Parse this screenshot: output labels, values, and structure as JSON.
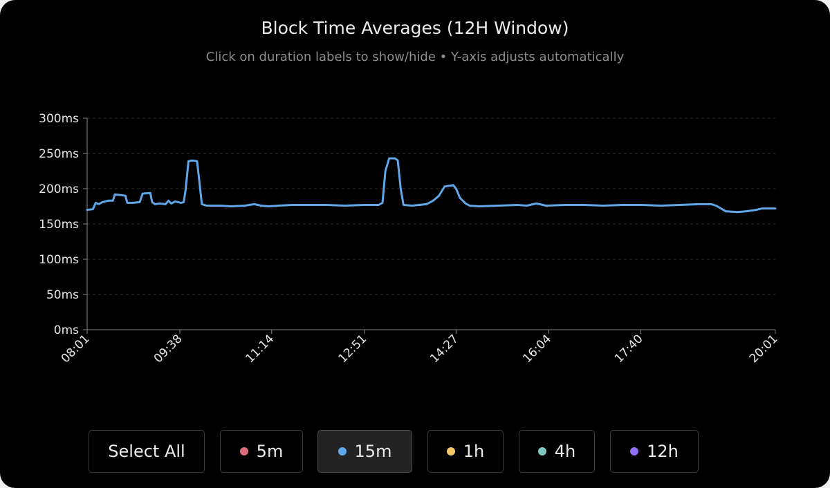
{
  "header": {
    "title": "Block Time Averages (12H Window)",
    "subtitle": "Click on duration labels to show/hide • Y-axis adjusts automatically"
  },
  "controls": {
    "select_all": "Select All",
    "series": [
      {
        "label": "5m",
        "color": "#e26d7a",
        "active": false
      },
      {
        "label": "15m",
        "color": "#5fa7e8",
        "active": true
      },
      {
        "label": "1h",
        "color": "#f3c969",
        "active": false
      },
      {
        "label": "4h",
        "color": "#7fc6c0",
        "active": false
      },
      {
        "label": "12h",
        "color": "#8f6ef2",
        "active": false
      }
    ]
  },
  "chart_data": {
    "type": "line",
    "title": "Block Time Averages (12H Window)",
    "xlabel": "",
    "ylabel": "",
    "ylim": [
      0,
      300
    ],
    "y_ticks": [
      "0ms",
      "50ms",
      "100ms",
      "150ms",
      "200ms",
      "250ms",
      "300ms"
    ],
    "x_range_minutes": [
      0,
      720
    ],
    "x_ticks": [
      {
        "t": 0,
        "label": "08:01"
      },
      {
        "t": 97,
        "label": "09:38"
      },
      {
        "t": 193,
        "label": "11:14"
      },
      {
        "t": 290,
        "label": "12:51"
      },
      {
        "t": 386,
        "label": "14:27"
      },
      {
        "t": 483,
        "label": "16:04"
      },
      {
        "t": 579,
        "label": "17:40"
      },
      {
        "t": 720,
        "label": "20:01"
      }
    ],
    "grid": true,
    "series": [
      {
        "name": "15m",
        "color": "#5fa7e8",
        "points": [
          [
            0,
            170
          ],
          [
            6,
            171
          ],
          [
            9,
            180
          ],
          [
            12,
            178
          ],
          [
            16,
            181
          ],
          [
            22,
            183
          ],
          [
            27,
            183
          ],
          [
            29,
            192
          ],
          [
            35,
            191
          ],
          [
            40,
            190
          ],
          [
            42,
            180
          ],
          [
            48,
            180
          ],
          [
            55,
            181
          ],
          [
            58,
            193
          ],
          [
            66,
            194
          ],
          [
            68,
            181
          ],
          [
            71,
            178
          ],
          [
            76,
            179
          ],
          [
            82,
            178
          ],
          [
            85,
            183
          ],
          [
            88,
            179
          ],
          [
            92,
            182
          ],
          [
            98,
            180
          ],
          [
            101,
            181
          ],
          [
            103,
            198
          ],
          [
            106,
            239
          ],
          [
            110,
            240
          ],
          [
            115,
            239
          ],
          [
            117,
            215
          ],
          [
            120,
            178
          ],
          [
            125,
            176
          ],
          [
            140,
            176
          ],
          [
            150,
            175
          ],
          [
            165,
            176
          ],
          [
            175,
            178
          ],
          [
            182,
            176
          ],
          [
            190,
            175
          ],
          [
            200,
            176
          ],
          [
            215,
            177
          ],
          [
            230,
            177
          ],
          [
            250,
            177
          ],
          [
            270,
            176
          ],
          [
            290,
            177
          ],
          [
            305,
            177
          ],
          [
            309,
            180
          ],
          [
            312,
            225
          ],
          [
            316,
            243
          ],
          [
            322,
            243
          ],
          [
            325,
            240
          ],
          [
            328,
            200
          ],
          [
            331,
            177
          ],
          [
            340,
            176
          ],
          [
            355,
            178
          ],
          [
            362,
            183
          ],
          [
            368,
            190
          ],
          [
            374,
            203
          ],
          [
            383,
            205
          ],
          [
            386,
            200
          ],
          [
            390,
            187
          ],
          [
            396,
            179
          ],
          [
            400,
            176
          ],
          [
            410,
            175
          ],
          [
            430,
            176
          ],
          [
            450,
            177
          ],
          [
            460,
            176
          ],
          [
            470,
            179
          ],
          [
            480,
            176
          ],
          [
            500,
            177
          ],
          [
            520,
            177
          ],
          [
            540,
            176
          ],
          [
            560,
            177
          ],
          [
            580,
            177
          ],
          [
            600,
            176
          ],
          [
            620,
            177
          ],
          [
            640,
            178
          ],
          [
            645,
            178
          ],
          [
            653,
            178
          ],
          [
            658,
            176
          ],
          [
            668,
            168
          ],
          [
            680,
            167
          ],
          [
            690,
            168
          ],
          [
            700,
            170
          ],
          [
            706,
            172
          ],
          [
            720,
            172
          ]
        ]
      }
    ]
  }
}
